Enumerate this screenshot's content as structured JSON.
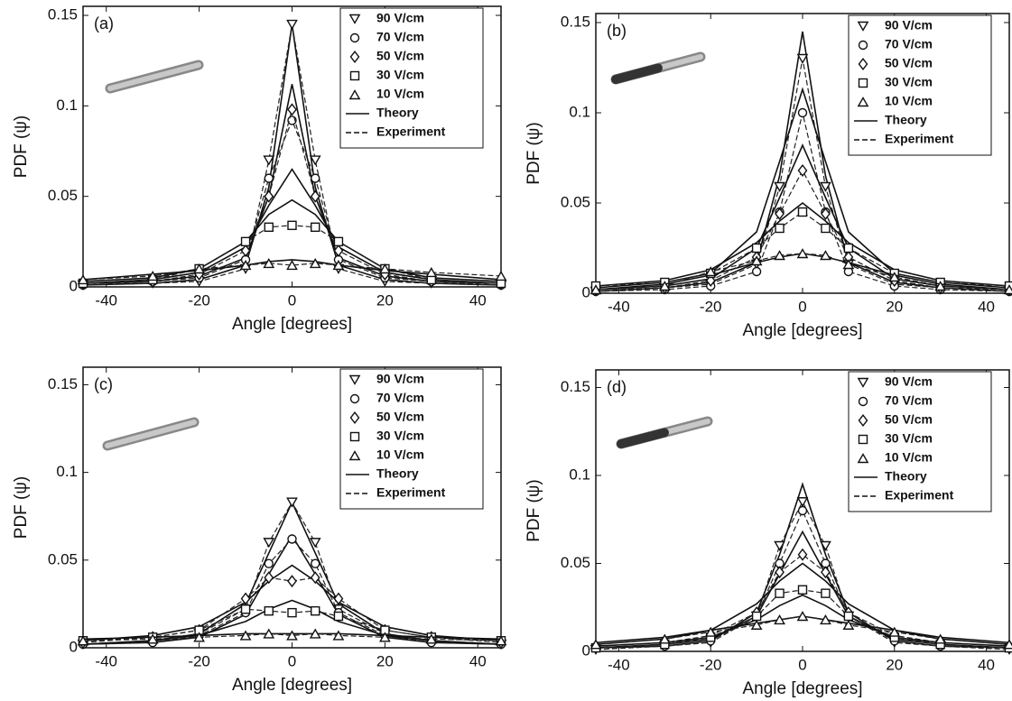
{
  "chart_data": [
    {
      "type": "line",
      "label": "(a)",
      "xlabel": "Angle [degrees]",
      "ylabel": "PDF (ψ)",
      "x": [
        -45,
        -30,
        -20,
        -10,
        -5,
        0,
        5,
        10,
        20,
        30,
        45
      ],
      "xlim": [
        -45,
        45
      ],
      "xticks": [
        -40,
        -20,
        0,
        20,
        40
      ],
      "ylim": [
        0,
        0.155
      ],
      "yticks": [
        0,
        0.05,
        0.1,
        0.15
      ],
      "line_styles": [
        {
          "name": "Theory",
          "dash": "solid"
        },
        {
          "name": "Experiment",
          "dash": "dashed"
        }
      ],
      "series": [
        {
          "name": "90 V/cm",
          "marker": "triangle-down",
          "theory": [
            0.001,
            0.002,
            0.004,
            0.012,
            0.055,
            0.145,
            0.055,
            0.012,
            0.004,
            0.002,
            0.001
          ],
          "values": [
            0.001,
            0.002,
            0.003,
            0.01,
            0.07,
            0.145,
            0.07,
            0.01,
            0.003,
            0.002,
            0.001
          ]
        },
        {
          "name": "70 V/cm",
          "marker": "circle",
          "theory": [
            0.002,
            0.003,
            0.006,
            0.016,
            0.05,
            0.112,
            0.05,
            0.016,
            0.006,
            0.003,
            0.002
          ],
          "values": [
            0.001,
            0.003,
            0.005,
            0.015,
            0.06,
            0.092,
            0.06,
            0.015,
            0.005,
            0.003,
            0.001
          ]
        },
        {
          "name": "50 V/cm",
          "marker": "diamond",
          "theory": [
            0.002,
            0.004,
            0.008,
            0.022,
            0.045,
            0.065,
            0.045,
            0.022,
            0.008,
            0.004,
            0.002
          ],
          "values": [
            0.002,
            0.003,
            0.007,
            0.02,
            0.05,
            0.098,
            0.05,
            0.02,
            0.007,
            0.003,
            0.002
          ]
        },
        {
          "name": "30 V/cm",
          "marker": "square",
          "theory": [
            0.003,
            0.005,
            0.01,
            0.025,
            0.04,
            0.048,
            0.04,
            0.025,
            0.01,
            0.005,
            0.003
          ],
          "values": [
            0.002,
            0.004,
            0.01,
            0.025,
            0.033,
            0.034,
            0.033,
            0.025,
            0.01,
            0.004,
            0.002
          ]
        },
        {
          "name": "10 V/cm",
          "marker": "triangle-up",
          "theory": [
            0.004,
            0.007,
            0.009,
            0.012,
            0.014,
            0.015,
            0.014,
            0.012,
            0.009,
            0.007,
            0.004
          ],
          "values": [
            0.004,
            0.006,
            0.01,
            0.012,
            0.013,
            0.012,
            0.013,
            0.012,
            0.01,
            0.008,
            0.006
          ]
        }
      ]
    },
    {
      "type": "line",
      "label": "(b)",
      "xlabel": "Angle [degrees]",
      "ylabel": "PDF (ψ)",
      "x": [
        -45,
        -30,
        -20,
        -10,
        -5,
        0,
        5,
        10,
        20,
        30,
        45
      ],
      "xlim": [
        -45,
        45
      ],
      "xticks": [
        -40,
        -20,
        0,
        20,
        40
      ],
      "ylim": [
        0,
        0.155
      ],
      "yticks": [
        0,
        0.05,
        0.1,
        0.15
      ],
      "line_styles": [
        {
          "name": "Theory",
          "dash": "solid"
        },
        {
          "name": "Experiment",
          "dash": "dashed"
        }
      ],
      "series": [
        {
          "name": "90 V/cm",
          "marker": "triangle-down",
          "theory": [
            0.001,
            0.003,
            0.006,
            0.017,
            0.065,
            0.145,
            0.065,
            0.017,
            0.006,
            0.003,
            0.001
          ],
          "values": [
            0.001,
            0.003,
            0.005,
            0.016,
            0.059,
            0.13,
            0.059,
            0.016,
            0.005,
            0.003,
            0.001
          ]
        },
        {
          "name": "70 V/cm",
          "marker": "circle",
          "theory": [
            0.003,
            0.006,
            0.011,
            0.034,
            0.073,
            0.113,
            0.073,
            0.034,
            0.011,
            0.006,
            0.003
          ],
          "values": [
            0.001,
            0.002,
            0.004,
            0.012,
            0.045,
            0.1,
            0.045,
            0.012,
            0.004,
            0.002,
            0.001
          ]
        },
        {
          "name": "50 V/cm",
          "marker": "diamond",
          "theory": [
            0.002,
            0.004,
            0.008,
            0.025,
            0.053,
            0.082,
            0.053,
            0.025,
            0.008,
            0.004,
            0.002
          ],
          "values": [
            0.002,
            0.003,
            0.007,
            0.02,
            0.044,
            0.068,
            0.044,
            0.02,
            0.007,
            0.003,
            0.002
          ]
        },
        {
          "name": "30 V/cm",
          "marker": "square",
          "theory": [
            0.004,
            0.007,
            0.013,
            0.028,
            0.04,
            0.05,
            0.04,
            0.028,
            0.013,
            0.007,
            0.004
          ],
          "values": [
            0.004,
            0.006,
            0.011,
            0.025,
            0.036,
            0.045,
            0.036,
            0.025,
            0.011,
            0.006,
            0.004
          ]
        },
        {
          "name": "10 V/cm",
          "marker": "triangle-up",
          "theory": [
            0.002,
            0.005,
            0.01,
            0.017,
            0.02,
            0.022,
            0.02,
            0.017,
            0.01,
            0.005,
            0.002
          ],
          "values": [
            0.002,
            0.004,
            0.012,
            0.018,
            0.021,
            0.022,
            0.021,
            0.016,
            0.009,
            0.004,
            0.002
          ]
        }
      ]
    },
    {
      "type": "line",
      "label": "(c)",
      "xlabel": "Angle [degrees]",
      "ylabel": "PDF (ψ)",
      "x": [
        -45,
        -30,
        -20,
        -10,
        -5,
        0,
        5,
        10,
        20,
        30,
        45
      ],
      "xlim": [
        -45,
        45
      ],
      "xticks": [
        -40,
        -20,
        0,
        20,
        40
      ],
      "ylim": [
        0,
        0.16
      ],
      "yticks": [
        0,
        0.05,
        0.1,
        0.15
      ],
      "line_styles": [
        {
          "name": "Theory",
          "dash": "solid"
        },
        {
          "name": "Experiment",
          "dash": "dashed"
        }
      ],
      "series": [
        {
          "name": "90 V/cm",
          "marker": "triangle-down",
          "theory": [
            0.002,
            0.004,
            0.008,
            0.025,
            0.054,
            0.083,
            0.054,
            0.025,
            0.008,
            0.004,
            0.002
          ],
          "values": [
            0.002,
            0.004,
            0.008,
            0.022,
            0.06,
            0.083,
            0.06,
            0.022,
            0.008,
            0.004,
            0.002
          ]
        },
        {
          "name": "70 V/cm",
          "marker": "circle",
          "theory": [
            0.002,
            0.003,
            0.006,
            0.019,
            0.042,
            0.064,
            0.042,
            0.019,
            0.006,
            0.003,
            0.002
          ],
          "values": [
            0.002,
            0.003,
            0.007,
            0.02,
            0.048,
            0.062,
            0.048,
            0.02,
            0.007,
            0.003,
            0.002
          ]
        },
        {
          "name": "50 V/cm",
          "marker": "diamond",
          "theory": [
            0.004,
            0.007,
            0.012,
            0.026,
            0.038,
            0.047,
            0.038,
            0.026,
            0.012,
            0.007,
            0.004
          ],
          "values": [
            0.003,
            0.006,
            0.01,
            0.028,
            0.04,
            0.038,
            0.04,
            0.028,
            0.01,
            0.006,
            0.003
          ]
        },
        {
          "name": "30 V/cm",
          "marker": "square",
          "theory": [
            0.002,
            0.004,
            0.007,
            0.015,
            0.022,
            0.027,
            0.022,
            0.015,
            0.007,
            0.004,
            0.002
          ],
          "values": [
            0.004,
            0.006,
            0.01,
            0.022,
            0.021,
            0.02,
            0.021,
            0.018,
            0.01,
            0.006,
            0.004
          ]
        },
        {
          "name": "10 V/cm",
          "marker": "triangle-up",
          "theory": [
            0.005,
            0.006,
            0.007,
            0.008,
            0.008,
            0.008,
            0.008,
            0.008,
            0.007,
            0.006,
            0.005
          ],
          "values": [
            0.004,
            0.005,
            0.006,
            0.007,
            0.008,
            0.007,
            0.008,
            0.007,
            0.006,
            0.005,
            0.004
          ]
        }
      ]
    },
    {
      "type": "line",
      "label": "(d)",
      "xlabel": "Angle [degrees]",
      "ylabel": "PDF (ψ)",
      "x": [
        -45,
        -30,
        -20,
        -10,
        -5,
        0,
        5,
        10,
        20,
        30,
        45
      ],
      "xlim": [
        -45,
        45
      ],
      "xticks": [
        -40,
        -20,
        0,
        20,
        40
      ],
      "ylim": [
        0,
        0.16
      ],
      "yticks": [
        0,
        0.05,
        0.1,
        0.15
      ],
      "line_styles": [
        {
          "name": "Theory",
          "dash": "solid"
        },
        {
          "name": "Experiment",
          "dash": "dashed"
        }
      ],
      "series": [
        {
          "name": "90 V/cm",
          "marker": "triangle-down",
          "theory": [
            0.002,
            0.003,
            0.006,
            0.022,
            0.055,
            0.095,
            0.055,
            0.022,
            0.006,
            0.003,
            0.002
          ],
          "values": [
            0.001,
            0.003,
            0.005,
            0.02,
            0.06,
            0.085,
            0.06,
            0.02,
            0.005,
            0.003,
            0.001
          ]
        },
        {
          "name": "70 V/cm",
          "marker": "circle",
          "theory": [
            0.002,
            0.004,
            0.007,
            0.02,
            0.044,
            0.068,
            0.044,
            0.02,
            0.007,
            0.004,
            0.002
          ],
          "values": [
            0.002,
            0.003,
            0.006,
            0.02,
            0.05,
            0.08,
            0.05,
            0.02,
            0.006,
            0.003,
            0.002
          ]
        },
        {
          "name": "50 V/cm",
          "marker": "diamond",
          "theory": [
            0.004,
            0.007,
            0.012,
            0.027,
            0.04,
            0.05,
            0.04,
            0.027,
            0.012,
            0.007,
            0.004
          ],
          "values": [
            0.003,
            0.005,
            0.009,
            0.022,
            0.045,
            0.055,
            0.045,
            0.022,
            0.009,
            0.005,
            0.003
          ]
        },
        {
          "name": "30 V/cm",
          "marker": "square",
          "theory": [
            0.003,
            0.005,
            0.008,
            0.018,
            0.026,
            0.032,
            0.026,
            0.018,
            0.008,
            0.005,
            0.003
          ],
          "values": [
            0.002,
            0.004,
            0.008,
            0.02,
            0.033,
            0.035,
            0.033,
            0.02,
            0.008,
            0.004,
            0.002
          ]
        },
        {
          "name": "10 V/cm",
          "marker": "triangle-up",
          "theory": [
            0.005,
            0.008,
            0.012,
            0.016,
            0.018,
            0.02,
            0.018,
            0.016,
            0.012,
            0.008,
            0.005
          ],
          "values": [
            0.004,
            0.007,
            0.011,
            0.015,
            0.018,
            0.02,
            0.018,
            0.015,
            0.011,
            0.007,
            0.004
          ]
        }
      ]
    }
  ]
}
